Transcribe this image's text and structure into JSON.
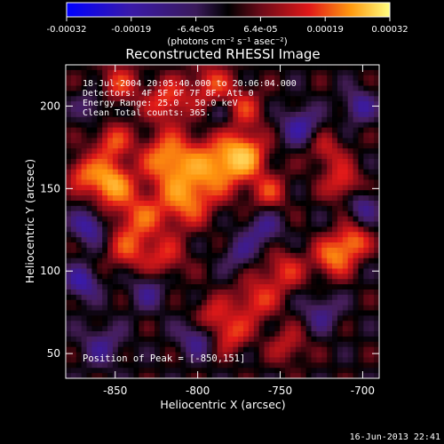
{
  "chart_data": {
    "type": "heatmap",
    "title": "Reconstructed RHESSI Image",
    "xlabel": "Heliocentric X (arcsec)",
    "ylabel": "Heliocentric Y (arcsec)",
    "xlim": [
      -880,
      -690
    ],
    "ylim": [
      35,
      225
    ],
    "x_ticks": [
      -850,
      -800,
      -750,
      -700
    ],
    "x_tick_labels": [
      "-850",
      "-800",
      "-750",
      "-700"
    ],
    "y_ticks": [
      50,
      100,
      150,
      200
    ],
    "y_tick_labels": [
      "50",
      "100",
      "150",
      "200"
    ],
    "colorbar": {
      "range": [
        -0.00032,
        0.00032
      ],
      "tick_labels": [
        "-0.00032",
        "-0.00019",
        "-6.4e-05",
        "6.4e-05",
        "0.00019",
        "0.00032"
      ],
      "units": "(photons cm⁻² s⁻¹ asec⁻²)"
    },
    "annotations": [
      "18-Jul-2004 20:05:40.000 to 20:06:04.000",
      "Detectors: 4F 5F 6F 7F 8F, Att 0",
      "Energy Range: 25.0 - 50.0 keV",
      "Clean    Total counts: 365."
    ],
    "peak_label": "Position of Peak = [-850,151]",
    "peak": [
      -850,
      151
    ],
    "timestamp": "16-Jun-2013 22:41",
    "sources": [
      {
        "x": -853,
        "y": 153,
        "amp": 1.0,
        "r": 9
      },
      {
        "x": -818,
        "y": 168,
        "amp": 0.85,
        "r": 11
      },
      {
        "x": -790,
        "y": 163,
        "amp": 0.8,
        "r": 12
      },
      {
        "x": -772,
        "y": 170,
        "amp": 0.95,
        "r": 9
      },
      {
        "x": -808,
        "y": 143,
        "amp": 0.75,
        "r": 11
      },
      {
        "x": -835,
        "y": 133,
        "amp": 0.6,
        "r": 10
      },
      {
        "x": -852,
        "y": 178,
        "amp": 0.6,
        "r": 8
      },
      {
        "x": -870,
        "y": 160,
        "amp": 0.55,
        "r": 7
      },
      {
        "x": -842,
        "y": 113,
        "amp": 0.5,
        "r": 9
      },
      {
        "x": -820,
        "y": 108,
        "amp": 0.45,
        "r": 9
      },
      {
        "x": -757,
        "y": 148,
        "amp": 0.5,
        "r": 8
      },
      {
        "x": -818,
        "y": 203,
        "amp": 0.6,
        "r": 9
      },
      {
        "x": -792,
        "y": 213,
        "amp": 0.55,
        "r": 9
      },
      {
        "x": -773,
        "y": 198,
        "amp": 0.5,
        "r": 9
      },
      {
        "x": -848,
        "y": 213,
        "amp": 0.5,
        "r": 9
      },
      {
        "x": -718,
        "y": 108,
        "amp": 0.75,
        "r": 8
      },
      {
        "x": -706,
        "y": 118,
        "amp": 0.7,
        "r": 7
      },
      {
        "x": -712,
        "y": 153,
        "amp": 0.55,
        "r": 8
      },
      {
        "x": -722,
        "y": 173,
        "amp": 0.4,
        "r": 8
      },
      {
        "x": -748,
        "y": 100,
        "amp": 0.5,
        "r": 9
      },
      {
        "x": -765,
        "y": 82,
        "amp": 0.55,
        "r": 9
      },
      {
        "x": -780,
        "y": 62,
        "amp": 0.55,
        "r": 8
      },
      {
        "x": -792,
        "y": 73,
        "amp": 0.45,
        "r": 8
      },
      {
        "x": -745,
        "y": 55,
        "amp": 0.4,
        "r": 8
      },
      {
        "x": -866,
        "y": 127,
        "amp": -0.6,
        "r": 7
      },
      {
        "x": -870,
        "y": 93,
        "amp": -0.6,
        "r": 7
      },
      {
        "x": -830,
        "y": 88,
        "amp": -0.4,
        "r": 8
      },
      {
        "x": -800,
        "y": 60,
        "amp": -0.5,
        "r": 8
      },
      {
        "x": -738,
        "y": 188,
        "amp": -0.55,
        "r": 8
      },
      {
        "x": -702,
        "y": 200,
        "amp": -0.5,
        "r": 7
      },
      {
        "x": -760,
        "y": 125,
        "amp": -0.45,
        "r": 8
      },
      {
        "x": -725,
        "y": 75,
        "amp": -0.4,
        "r": 8
      },
      {
        "x": -700,
        "y": 140,
        "amp": -0.45,
        "r": 7
      },
      {
        "x": -785,
        "y": 195,
        "amp": -0.3,
        "r": 7
      },
      {
        "x": -863,
        "y": 200,
        "amp": -0.35,
        "r": 7
      },
      {
        "x": -858,
        "y": 55,
        "amp": -0.4,
        "r": 9
      },
      {
        "x": -775,
        "y": 110,
        "amp": -0.35,
        "r": 7
      }
    ]
  }
}
